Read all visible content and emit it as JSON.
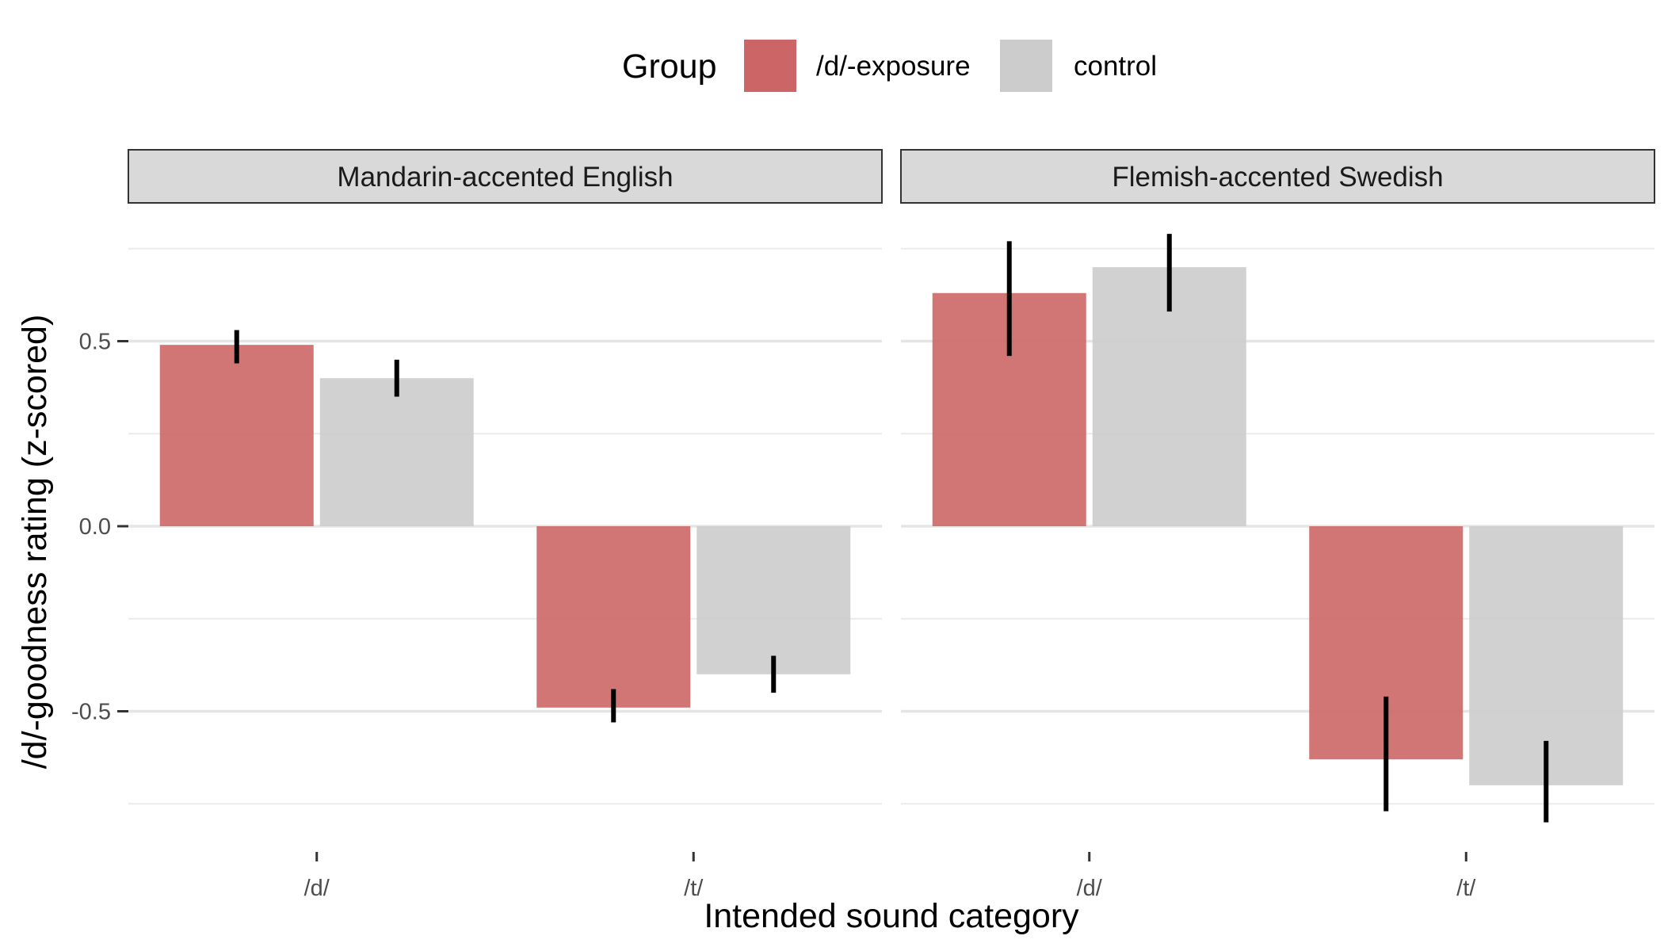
{
  "chart_data": {
    "type": "bar",
    "xlabel": "Intended sound category",
    "ylabel": "/d/-goodness rating (z-scored)",
    "legend": {
      "title": "Group",
      "position": "top",
      "entries": [
        {
          "name": "/d/-exposure",
          "color": "#cc6666"
        },
        {
          "name": "control",
          "color": "#cccccc"
        }
      ]
    },
    "categories": [
      "/d/",
      "/t/"
    ],
    "ylim": [
      -0.78,
      0.8
    ],
    "yticks": [
      -0.5,
      0.0,
      0.5
    ],
    "ytick_labels": [
      "-0.5",
      "0.0",
      "0.5"
    ],
    "grid": true,
    "panels": [
      {
        "title": "Mandarin-accented English",
        "series": [
          {
            "name": "/d/-exposure",
            "values": [
              0.49,
              -0.49
            ],
            "error_low": [
              0.44,
              -0.53
            ],
            "error_high": [
              0.53,
              -0.44
            ]
          },
          {
            "name": "control",
            "values": [
              0.4,
              -0.4
            ],
            "error_low": [
              0.35,
              -0.45
            ],
            "error_high": [
              0.45,
              -0.35
            ]
          }
        ]
      },
      {
        "title": "Flemish-accented Swedish",
        "series": [
          {
            "name": "/d/-exposure",
            "values": [
              0.63,
              -0.63
            ],
            "error_low": [
              0.46,
              -0.77
            ],
            "error_high": [
              0.77,
              -0.46
            ]
          },
          {
            "name": "control",
            "values": [
              0.7,
              -0.7
            ],
            "error_low": [
              0.58,
              -0.8
            ],
            "error_high": [
              0.79,
              -0.58
            ]
          }
        ]
      }
    ]
  }
}
